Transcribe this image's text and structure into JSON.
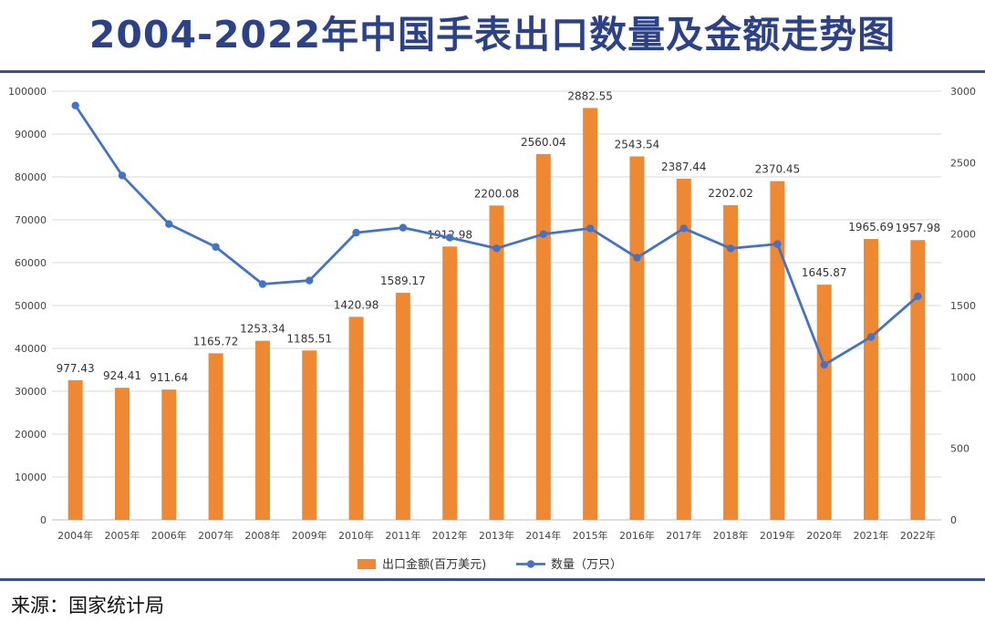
{
  "title": "2004-2022年中国手表出口数量及金额走势图",
  "source": "来源：国家统计局",
  "chart_data": {
    "type": "bar",
    "categories": [
      "2004年",
      "2005年",
      "2006年",
      "2007年",
      "2008年",
      "2009年",
      "2010年",
      "2011年",
      "2012年",
      "2013年",
      "2014年",
      "2015年",
      "2016年",
      "2017年",
      "2018年",
      "2019年",
      "2020年",
      "2021年",
      "2022年"
    ],
    "series": [
      {
        "name": "出口金额(百万美元)",
        "type": "bar",
        "axis": "left",
        "color": "#ee8833",
        "values": [
          977.43,
          924.41,
          911.64,
          1165.72,
          1253.34,
          1185.51,
          1420.98,
          1589.17,
          1912.98,
          2200.08,
          2560.04,
          2882.55,
          2543.54,
          2387.44,
          2202.02,
          2370.45,
          1645.87,
          1965.69,
          1957.98
        ],
        "value_labels": [
          "977.43",
          "924.41",
          "911.64",
          "1165.72",
          "1253.34",
          "1185.51",
          "1420.98",
          "1589.17",
          "1912.98",
          "2200.08",
          "2560.04",
          "2882.55",
          "2543.54",
          "2387.44",
          "2202.02",
          "2370.45",
          "1645.87",
          "1965.69",
          "1957.98"
        ]
      },
      {
        "name": "数量（万只）",
        "type": "line",
        "axis": "right",
        "color": "#4472c4",
        "values": [
          2900,
          2410,
          2070,
          1910,
          1650,
          1675,
          2010,
          2045,
          1975,
          1900,
          2000,
          2040,
          1835,
          2040,
          1900,
          1930,
          1085,
          1280,
          1565
        ]
      }
    ],
    "left_axis": {
      "min": 0,
      "max": 100000,
      "ticks": [
        "0",
        "10000",
        "20000",
        "30000",
        "40000",
        "50000",
        "60000",
        "70000",
        "80000",
        "90000",
        "100000"
      ]
    },
    "right_axis": {
      "min": 0,
      "max": 3000,
      "ticks": [
        "0",
        "500",
        "1000",
        "1500",
        "2000",
        "2500",
        "3000"
      ]
    },
    "bar_scale_max": 3000,
    "grid": true,
    "legend_position": "bottom"
  }
}
